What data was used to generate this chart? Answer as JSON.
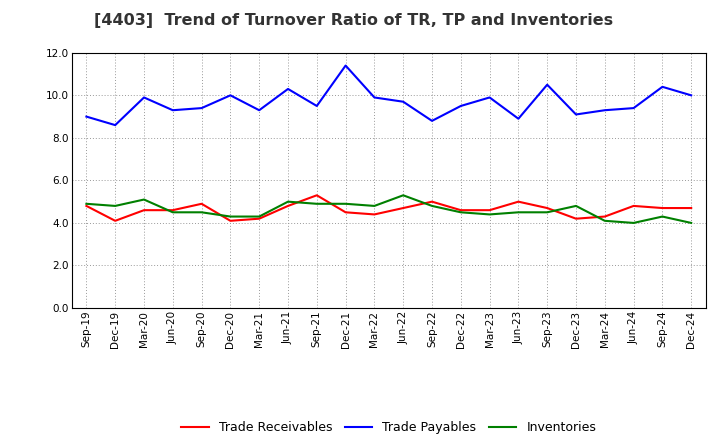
{
  "title": "[4403]  Trend of Turnover Ratio of TR, TP and Inventories",
  "labels": [
    "Sep-19",
    "Dec-19",
    "Mar-20",
    "Jun-20",
    "Sep-20",
    "Dec-20",
    "Mar-21",
    "Jun-21",
    "Sep-21",
    "Dec-21",
    "Mar-22",
    "Jun-22",
    "Sep-22",
    "Dec-22",
    "Mar-23",
    "Jun-23",
    "Sep-23",
    "Dec-23",
    "Mar-24",
    "Jun-24",
    "Sep-24",
    "Dec-24"
  ],
  "trade_receivables": [
    4.8,
    4.1,
    4.6,
    4.6,
    4.9,
    4.1,
    4.2,
    4.8,
    5.3,
    4.5,
    4.4,
    4.7,
    5.0,
    4.6,
    4.6,
    5.0,
    4.7,
    4.2,
    4.3,
    4.8,
    4.7,
    4.7
  ],
  "trade_payables": [
    9.0,
    8.6,
    9.9,
    9.3,
    9.4,
    10.0,
    9.3,
    10.3,
    9.5,
    11.4,
    9.9,
    9.7,
    8.8,
    9.5,
    9.9,
    8.9,
    10.5,
    9.1,
    9.3,
    9.4,
    10.4,
    10.0
  ],
  "inventories": [
    4.9,
    4.8,
    5.1,
    4.5,
    4.5,
    4.3,
    4.3,
    5.0,
    4.9,
    4.9,
    4.8,
    5.3,
    4.8,
    4.5,
    4.4,
    4.5,
    4.5,
    4.8,
    4.1,
    4.0,
    4.3,
    4.0
  ],
  "ylim": [
    0.0,
    12.0
  ],
  "yticks": [
    0.0,
    2.0,
    4.0,
    6.0,
    8.0,
    10.0,
    12.0
  ],
  "colors": {
    "trade_receivables": "#ff0000",
    "trade_payables": "#0000ff",
    "inventories": "#008000"
  },
  "legend_labels": [
    "Trade Receivables",
    "Trade Payables",
    "Inventories"
  ],
  "background_color": "#ffffff",
  "grid_color": "#999999",
  "title_fontsize": 11.5,
  "tick_fontsize": 7.5,
  "legend_fontsize": 9.0,
  "linewidth": 1.5
}
